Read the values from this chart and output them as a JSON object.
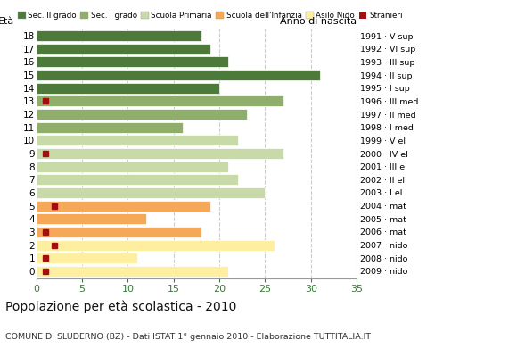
{
  "ages": [
    0,
    1,
    2,
    3,
    4,
    5,
    6,
    7,
    8,
    9,
    10,
    11,
    12,
    13,
    14,
    15,
    16,
    17,
    18
  ],
  "right_labels": [
    "2009 · nido",
    "2008 · nido",
    "2007 · nido",
    "2006 · mat",
    "2005 · mat",
    "2004 · mat",
    "2003 · I el",
    "2002 · II el",
    "2001 · III el",
    "2000 · IV el",
    "1999 · V el",
    "1998 · I med",
    "1997 · II med",
    "1996 · III med",
    "1995 · I sup",
    "1994 · II sup",
    "1993 · III sup",
    "1992 · VI sup",
    "1991 · V sup"
  ],
  "values": [
    21,
    11,
    26,
    18,
    12,
    19,
    25,
    22,
    21,
    27,
    22,
    16,
    23,
    27,
    20,
    31,
    21,
    19,
    18
  ],
  "colors": [
    "#FEEEA0",
    "#FEEEA0",
    "#FEEEA0",
    "#F5A958",
    "#F5A958",
    "#F5A958",
    "#C8DAA8",
    "#C8DAA8",
    "#C8DAA8",
    "#C8DAA8",
    "#C8DAA8",
    "#8FAE6B",
    "#8FAE6B",
    "#8FAE6B",
    "#4D7A3A",
    "#4D7A3A",
    "#4D7A3A",
    "#4D7A3A",
    "#4D7A3A"
  ],
  "stranieri_vals": [
    1,
    1,
    2,
    1,
    0,
    2,
    0,
    0,
    0,
    1,
    0,
    0,
    0,
    1,
    0,
    0,
    0,
    0,
    0
  ],
  "legend_labels": [
    "Sec. II grado",
    "Sec. I grado",
    "Scuola Primaria",
    "Scuola dell'Infanzia",
    "Asilo Nido",
    "Stranieri"
  ],
  "legend_colors": [
    "#4D7A3A",
    "#8FAE6B",
    "#C8DAA8",
    "#F5A958",
    "#FEEEA0",
    "#A01010"
  ],
  "title": "Popolazione per età scolastica - 2010",
  "subtitle": "COMUNE DI SLUDERNO (BZ) - Dati ISTAT 1° gennaio 2010 - Elaborazione TUTTITALIA.IT",
  "ylabel_left": "Età",
  "ylabel_right": "Anno di nascita",
  "xlim": [
    0,
    35
  ],
  "xticks": [
    0,
    5,
    10,
    15,
    20,
    25,
    30,
    35
  ],
  "background_color": "#FFFFFF",
  "grid_color": "#CCCCCC",
  "bar_height": 0.82
}
